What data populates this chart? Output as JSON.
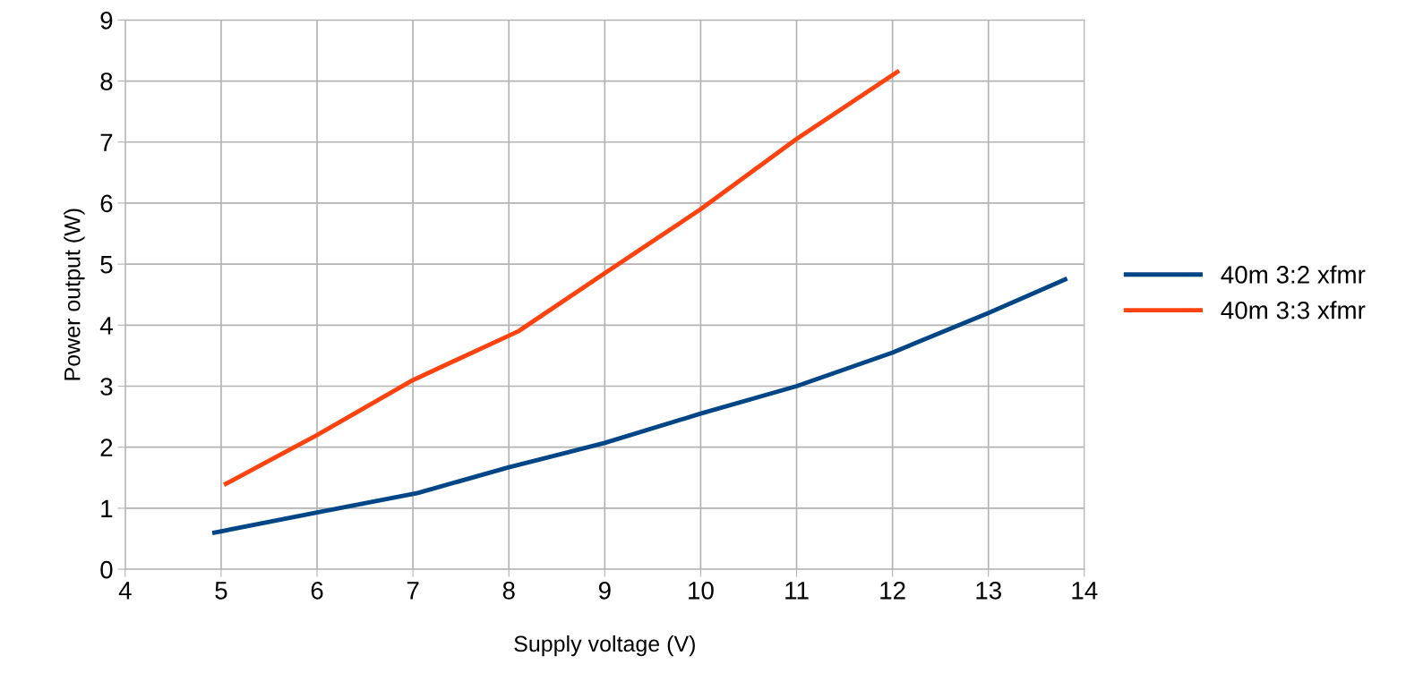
{
  "chart_data": {
    "type": "line",
    "xlabel": "Supply voltage (V)",
    "ylabel": "Power output (W)",
    "xlim": [
      4,
      14
    ],
    "xticks": [
      4,
      5,
      6,
      7,
      8,
      9,
      10,
      11,
      12,
      13,
      14
    ],
    "ylim": [
      0,
      9
    ],
    "yticks": [
      0,
      1,
      2,
      3,
      4,
      5,
      6,
      7,
      8,
      9
    ],
    "grid": true,
    "legend": "right",
    "marker": "none",
    "line_style": "solid",
    "series": [
      {
        "name": "40m 3:2 xfmr",
        "color": "#004586",
        "x": [
          4.93,
          6,
          7.05,
          8,
          9,
          10,
          11,
          12,
          13,
          13.8
        ],
        "values": [
          0.6,
          0.93,
          1.25,
          1.67,
          2.07,
          2.55,
          3.0,
          3.55,
          4.2,
          4.75
        ]
      },
      {
        "name": "40m 3:3 xfmr",
        "color": "#ff420e",
        "x": [
          5.05,
          6,
          7,
          8.1,
          9,
          10,
          11,
          12.05
        ],
        "values": [
          1.4,
          2.2,
          3.1,
          3.9,
          4.85,
          5.9,
          7.05,
          8.15
        ]
      }
    ]
  }
}
